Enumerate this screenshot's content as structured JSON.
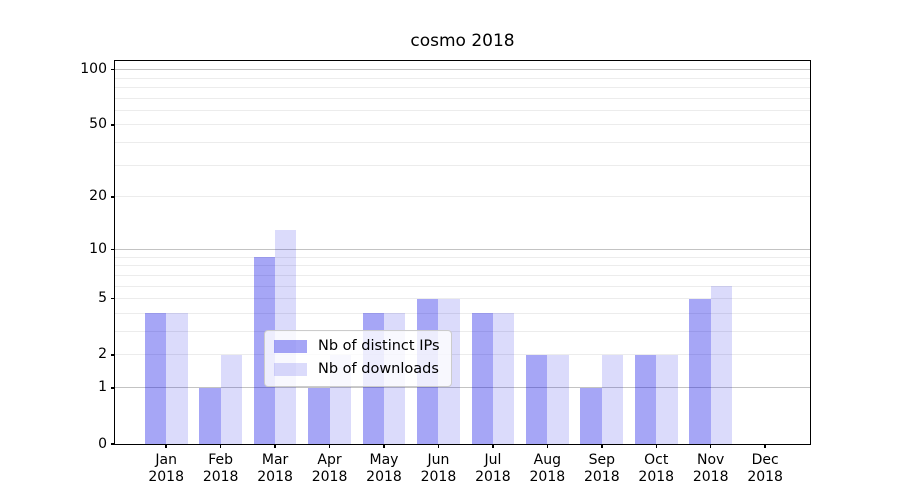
{
  "title": "cosmo 2018",
  "chart_data": {
    "type": "bar",
    "title": "cosmo 2018",
    "categories": [
      "Jan",
      "Feb",
      "Mar",
      "Apr",
      "May",
      "Jun",
      "Jul",
      "Aug",
      "Sep",
      "Oct",
      "Nov",
      "Dec"
    ],
    "year": "2018",
    "series": [
      {
        "name": "Nb of distinct IPs",
        "values": [
          4,
          1,
          9,
          1,
          4,
          5,
          4,
          2,
          1,
          2,
          5,
          0
        ],
        "color_hex": "#a8a8f8",
        "fill": "rgba(0,0,230,0.35)"
      },
      {
        "name": "Nb of downloads",
        "values": [
          4,
          2,
          13,
          2,
          4,
          5,
          4,
          2,
          2,
          2,
          6,
          0
        ],
        "color_hex": "#dcdcf8",
        "fill": "rgba(0,0,230,0.14)"
      }
    ],
    "xlabel": "",
    "ylabel": "",
    "yscale": "log1p",
    "ylim": [
      0,
      114
    ],
    "y_ticks": [
      0,
      1,
      2,
      5,
      10,
      20,
      50,
      100
    ],
    "y_major_gridlines": [
      1,
      10,
      100
    ],
    "y_minor_gridlines": [
      2,
      3,
      4,
      5,
      6,
      7,
      8,
      9,
      20,
      30,
      40,
      50,
      60,
      70,
      80,
      90
    ],
    "grid": "on",
    "legend_position": "lower center-left"
  },
  "colors": {
    "background": "#ffffff",
    "spine": "#000000",
    "grid_major": "#c3c3c3",
    "grid_minor": "#ececec",
    "bar_distinct_ips": "#a8a8f8",
    "bar_downloads": "#dcdcf8",
    "legend_border": "#cccccc"
  }
}
